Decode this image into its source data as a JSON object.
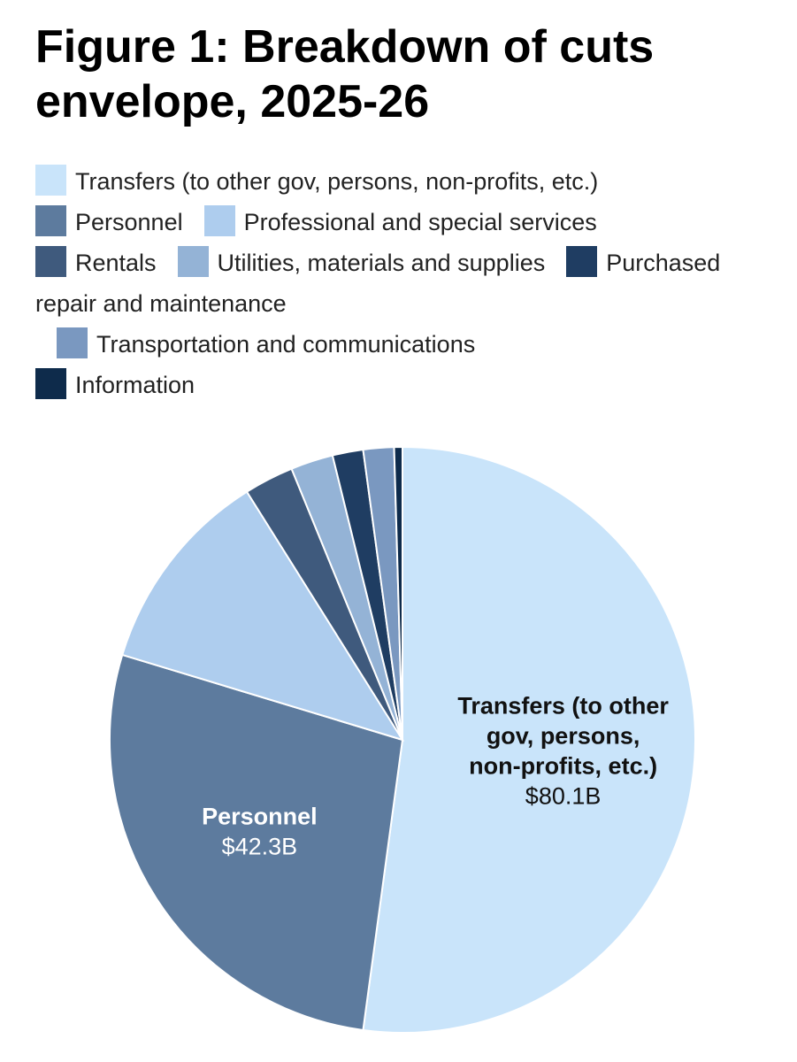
{
  "chart_data": {
    "type": "pie",
    "title": "Figure 1: Breakdown of cuts envelope, 2025-26",
    "unit": "$B",
    "slices": [
      {
        "name": "Transfers (to other gov, persons, non-profits, etc.)",
        "value": 80.1,
        "value_label": "$80.1B",
        "color": "#c9e4fa",
        "label_color": "#111111"
      },
      {
        "name": "Personnel",
        "value": 42.3,
        "value_label": "$42.3B",
        "color": "#5d7b9e",
        "label_color": "#ffffff"
      },
      {
        "name": "Professional and special services",
        "value": 17.5,
        "color": "#aecdee"
      },
      {
        "name": "Rentals",
        "value": 4.2,
        "color": "#3f5a7d"
      },
      {
        "name": "Utilities, materials and supplies",
        "value": 3.6,
        "color": "#94b3d6"
      },
      {
        "name": "Purchased repair and maintenance",
        "value": 2.6,
        "color": "#1f3d62"
      },
      {
        "name": "Transportation and communications",
        "value": 2.6,
        "color": "#7a98c0"
      },
      {
        "name": "Information",
        "value": 0.7,
        "color": "#0e2b4b"
      }
    ],
    "legend_placement": "top",
    "slice_labels": [
      {
        "lines": [
          "Transfers (to other",
          "gov, persons,",
          "non-profits, etc.)"
        ],
        "value": "$80.1B"
      },
      {
        "lines": [
          "Personnel"
        ],
        "value": "$42.3B"
      }
    ]
  }
}
